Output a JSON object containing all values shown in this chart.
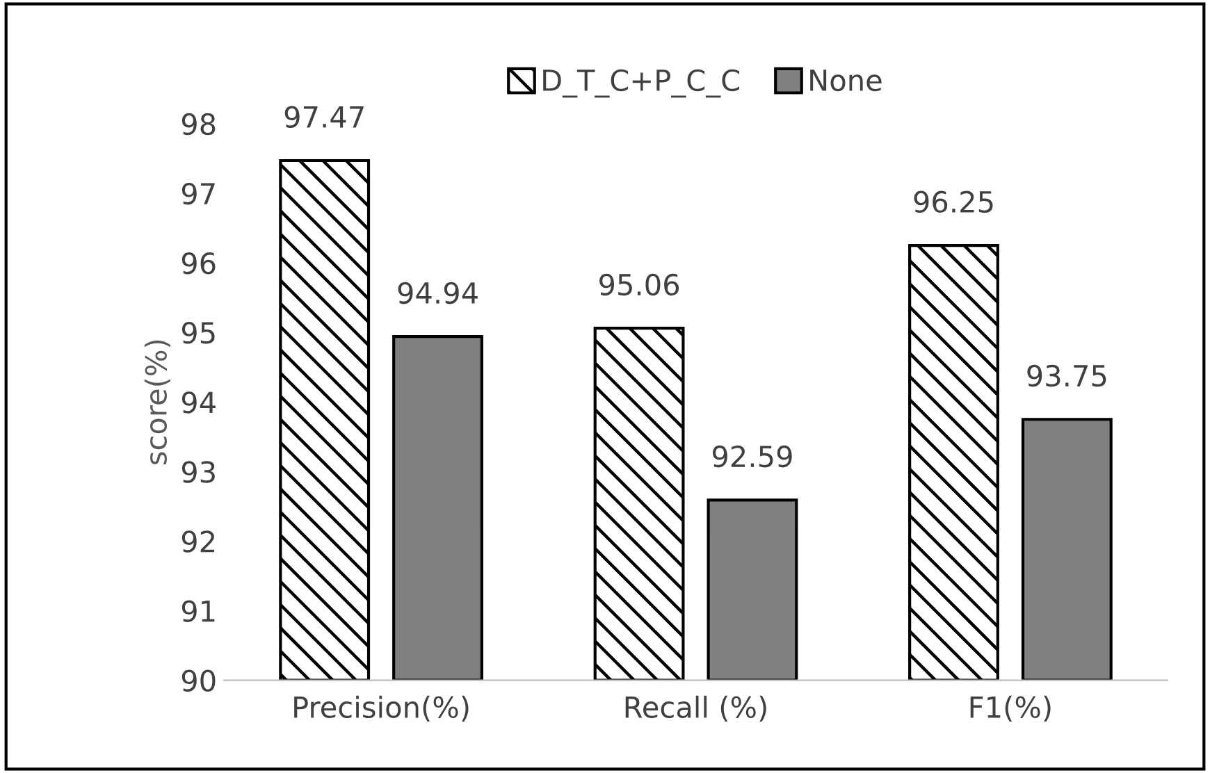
{
  "chart_data": {
    "type": "bar",
    "ylabel": "score(%)",
    "categories": [
      "Precision(%)",
      "Recall (%)",
      "F1(%)"
    ],
    "series": [
      {
        "name": "D_T_C+P_C_C",
        "color": "#000000",
        "values": [
          97.47,
          95.06,
          96.25
        ]
      },
      {
        "name": "None",
        "color": "#808080",
        "values": [
          94.94,
          92.59,
          93.75
        ]
      }
    ],
    "ylim": [
      90,
      98
    ],
    "yticks": [
      90,
      91,
      92,
      93,
      94,
      95,
      96,
      97,
      98
    ],
    "grid": false,
    "legend": "top",
    "data_labels": true
  }
}
